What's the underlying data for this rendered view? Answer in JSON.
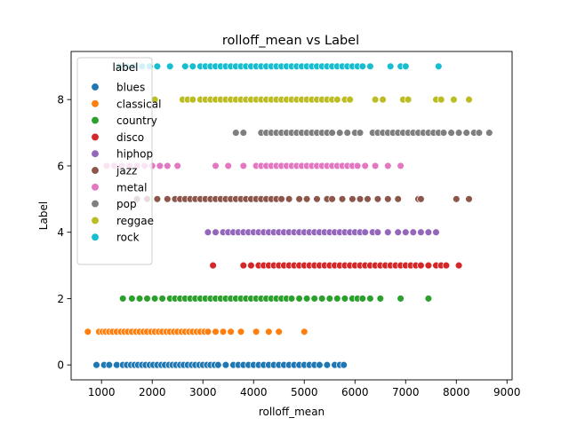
{
  "chart_data": {
    "type": "scatter",
    "title": "rolloff_mean vs Label",
    "xlabel": "rolloff_mean",
    "ylabel": "Label",
    "xlim": [
      400,
      9100
    ],
    "ylim": [
      -0.45,
      9.45
    ],
    "xticks": [
      1000,
      2000,
      3000,
      4000,
      5000,
      6000,
      7000,
      8000,
      9000
    ],
    "yticks": [
      0,
      2,
      4,
      6,
      8
    ],
    "grid": false,
    "legend": {
      "title": "label",
      "placement": "top-left"
    },
    "series": [
      {
        "name": "blues",
        "color": "#1f77b4",
        "y": 0,
        "x": [
          900,
          1050,
          1150,
          1300,
          1420,
          1500,
          1580,
          1650,
          1720,
          1800,
          1870,
          1950,
          2020,
          2100,
          2180,
          2250,
          2330,
          2400,
          2470,
          2550,
          2620,
          2700,
          2780,
          2850,
          2930,
          3000,
          3080,
          3150,
          3230,
          3300,
          3450,
          3600,
          3700,
          3800,
          3900,
          4000,
          4100,
          4200,
          4300,
          4400,
          4500,
          4600,
          4700,
          4800,
          4900,
          5000,
          5100,
          5200,
          5300,
          5450,
          5600,
          5700,
          5780
        ]
      },
      {
        "name": "classical",
        "color": "#ff7f0e",
        "y": 1,
        "x": [
          730,
          950,
          1020,
          1080,
          1150,
          1220,
          1300,
          1380,
          1450,
          1520,
          1600,
          1680,
          1750,
          1830,
          1900,
          1980,
          2050,
          2130,
          2200,
          2280,
          2350,
          2430,
          2500,
          2580,
          2650,
          2730,
          2800,
          2880,
          2950,
          3030,
          3100,
          3250,
          3400,
          3550,
          3750,
          4050,
          4300,
          4500,
          5000
        ]
      },
      {
        "name": "country",
        "color": "#2ca02c",
        "y": 2,
        "x": [
          1420,
          1600,
          1750,
          1900,
          2050,
          2200,
          2350,
          2450,
          2550,
          2650,
          2750,
          2850,
          2950,
          3050,
          3150,
          3250,
          3350,
          3450,
          3550,
          3650,
          3750,
          3850,
          3950,
          4050,
          4150,
          4250,
          4350,
          4450,
          4550,
          4650,
          4750,
          4900,
          5050,
          5200,
          5350,
          5500,
          5650,
          5800,
          5950,
          6050,
          6150,
          6300,
          6500,
          6900,
          7450
        ]
      },
      {
        "name": "disco",
        "color": "#d62728",
        "y": 3,
        "x": [
          3200,
          3800,
          3950,
          4100,
          4200,
          4300,
          4400,
          4500,
          4600,
          4700,
          4800,
          4900,
          5000,
          5100,
          5200,
          5300,
          5400,
          5500,
          5600,
          5700,
          5800,
          5900,
          6000,
          6100,
          6200,
          6300,
          6400,
          6500,
          6600,
          6700,
          6800,
          6900,
          7000,
          7100,
          7200,
          7300,
          7450,
          7600,
          7700,
          7800,
          8050
        ]
      },
      {
        "name": "hiphop",
        "color": "#9467bd",
        "y": 4,
        "x": [
          3100,
          3250,
          3400,
          3500,
          3600,
          3700,
          3800,
          3900,
          4000,
          4100,
          4200,
          4300,
          4400,
          4500,
          4600,
          4700,
          4800,
          4900,
          5000,
          5100,
          5200,
          5300,
          5400,
          5500,
          5600,
          5700,
          5800,
          5900,
          6000,
          6100,
          6200,
          6350,
          6450,
          6650,
          6850,
          7000,
          7150,
          7300,
          7450,
          7600
        ]
      },
      {
        "name": "jazz",
        "color": "#8c564b",
        "y": 5,
        "x": [
          1700,
          1900,
          2100,
          2300,
          2450,
          2550,
          2650,
          2750,
          2850,
          2950,
          3050,
          3150,
          3250,
          3350,
          3450,
          3550,
          3650,
          3750,
          3850,
          3950,
          4050,
          4150,
          4250,
          4350,
          4450,
          4550,
          4700,
          4900,
          5050,
          5250,
          5450,
          5550,
          5750,
          5950,
          6100,
          6250,
          6450,
          6650,
          6850,
          7250,
          7300,
          8000,
          8250
        ]
      },
      {
        "name": "metal",
        "color": "#e377c2",
        "y": 6,
        "x": [
          1100,
          1250,
          1400,
          1550,
          1700,
          1850,
          2000,
          2150,
          2300,
          2500,
          3250,
          3500,
          3800,
          4050,
          4150,
          4250,
          4350,
          4450,
          4550,
          4650,
          4750,
          4850,
          4950,
          5050,
          5150,
          5250,
          5350,
          5450,
          5550,
          5650,
          5750,
          5850,
          5950,
          6050,
          6200,
          6400,
          6650,
          6900
        ]
      },
      {
        "name": "pop",
        "color": "#7f7f7f",
        "y": 7,
        "x": [
          3650,
          3800,
          4150,
          4250,
          4350,
          4450,
          4550,
          4650,
          4750,
          4850,
          4950,
          5050,
          5150,
          5250,
          5350,
          5450,
          5550,
          5700,
          5850,
          6000,
          6100,
          6350,
          6450,
          6550,
          6650,
          6750,
          6850,
          6950,
          7050,
          7150,
          7250,
          7350,
          7450,
          7550,
          7650,
          7750,
          7900,
          8050,
          8200,
          8350,
          8450,
          8650
        ]
      },
      {
        "name": "reggae",
        "color": "#bcbd22",
        "y": 8,
        "x": [
          2050,
          2600,
          2700,
          2800,
          2950,
          3050,
          3150,
          3250,
          3350,
          3450,
          3550,
          3650,
          3750,
          3850,
          3950,
          4050,
          4150,
          4250,
          4350,
          4450,
          4550,
          4650,
          4750,
          4850,
          4950,
          5050,
          5150,
          5250,
          5350,
          5450,
          5550,
          5650,
          5800,
          5900,
          6400,
          6550,
          6950,
          7050,
          7600,
          7700,
          7950,
          8250
        ]
      },
      {
        "name": "rock",
        "color": "#17becf",
        "y": 9,
        "x": [
          1350,
          1500,
          1650,
          1800,
          1950,
          2100,
          2350,
          2650,
          2800,
          2950,
          3050,
          3150,
          3250,
          3350,
          3450,
          3550,
          3650,
          3750,
          3850,
          3950,
          4050,
          4150,
          4250,
          4350,
          4450,
          4550,
          4650,
          4750,
          4850,
          4950,
          5050,
          5150,
          5250,
          5350,
          5450,
          5550,
          5650,
          5750,
          5850,
          5950,
          6050,
          6150,
          6300,
          6700,
          6900,
          7000,
          7650
        ]
      }
    ]
  }
}
